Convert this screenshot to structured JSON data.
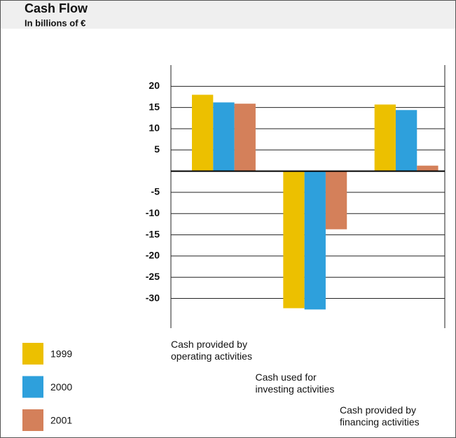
{
  "chart_data": {
    "type": "bar",
    "title": "Cash Flow",
    "subtitle": "In billions of €",
    "categories": [
      "Cash provided by\noperating activities",
      "Cash used for\ninvesting activities",
      "Cash provided by\nfinancing activities"
    ],
    "series": [
      {
        "name": "1999",
        "color": "#ecc000",
        "values": [
          18.0,
          -32.3,
          15.7
        ]
      },
      {
        "name": "2000",
        "color": "#2ea0dc",
        "values": [
          16.2,
          -32.6,
          14.4
        ]
      },
      {
        "name": "2001",
        "color": "#d4805a",
        "values": [
          15.9,
          -13.7,
          1.3
        ]
      }
    ],
    "ylim": [
      -37,
      25
    ],
    "yticks": [
      20,
      15,
      10,
      5,
      -5,
      -10,
      -15,
      -20,
      -25,
      -30
    ],
    "grid": true,
    "legend": "bottom-left"
  }
}
